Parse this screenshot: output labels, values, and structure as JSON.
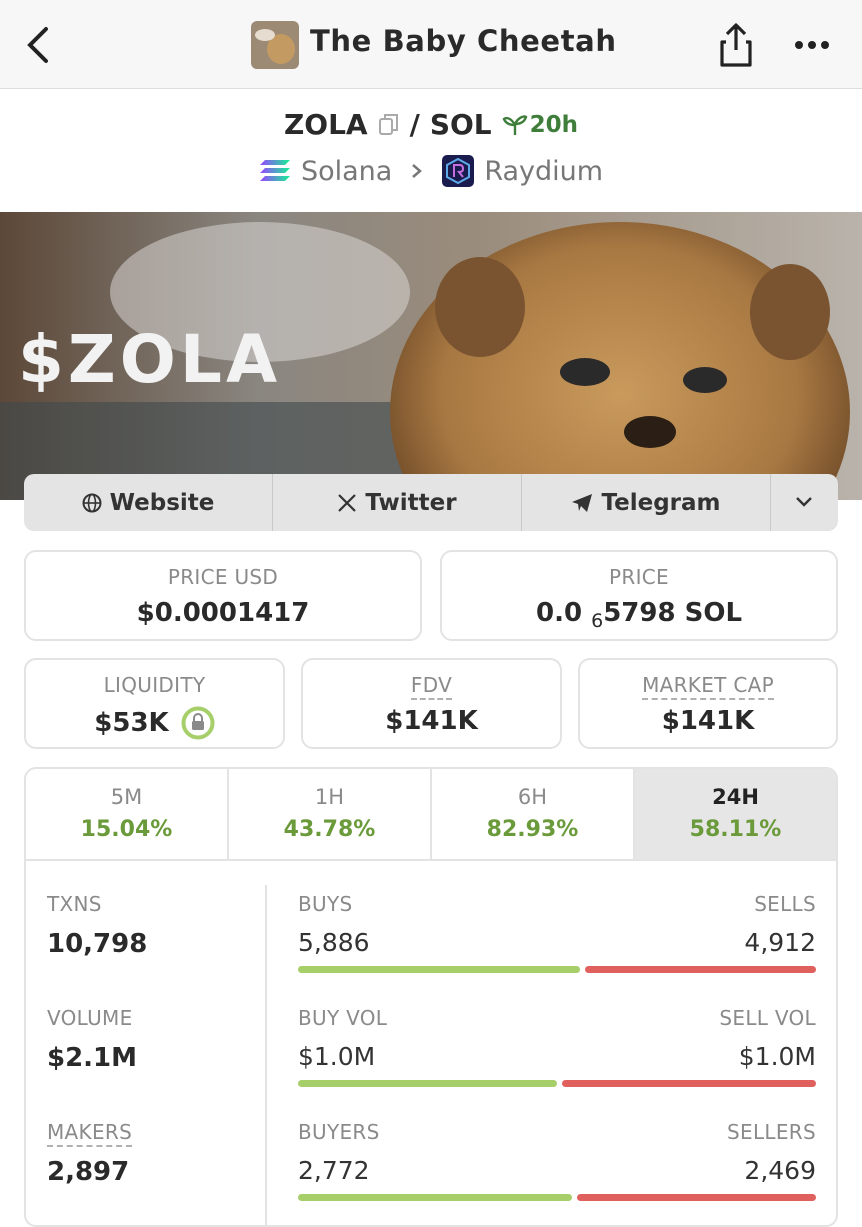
{
  "header": {
    "title": "The Baby Cheetah"
  },
  "pair": {
    "base": "ZOLA",
    "separator": "/",
    "quote": "SOL",
    "age": "20h",
    "chain": "Solana",
    "dex": "Raydium"
  },
  "banner": {
    "text": "$ZOLA"
  },
  "links": [
    "Website",
    "Twitter",
    "Telegram"
  ],
  "price_usd": {
    "label": "PRICE USD",
    "value": "$0.0001417"
  },
  "price": {
    "label": "PRICE",
    "value_prefix": "0.0",
    "zero_count": "6",
    "value_rest": "5798 SOL"
  },
  "liquidity": {
    "label": "LIQUIDITY",
    "value": "$53K"
  },
  "fdv": {
    "label": "FDV",
    "value": "$141K"
  },
  "market_cap": {
    "label": "MARKET CAP",
    "value": "$141K"
  },
  "timeframes": [
    {
      "label": "5M",
      "change": "15.04%"
    },
    {
      "label": "1H",
      "change": "43.78%"
    },
    {
      "label": "6H",
      "change": "82.93%"
    },
    {
      "label": "24H",
      "change": "58.11%"
    }
  ],
  "txns": {
    "label": "TXNS",
    "value": "10,798",
    "buys_label": "BUYS",
    "buys": "5,886",
    "sells_label": "SELLS",
    "sells": "4,912"
  },
  "volume": {
    "label": "VOLUME",
    "value": "$2.1M",
    "buy_label": "BUY VOL",
    "buy": "$1.0M",
    "sell_label": "SELL VOL",
    "sell": "$1.0M"
  },
  "makers": {
    "label": "MAKERS",
    "value": "2,897",
    "buyers_label": "BUYERS",
    "buyers": "2,772",
    "sellers_label": "SELLERS",
    "sellers": "2,469"
  }
}
